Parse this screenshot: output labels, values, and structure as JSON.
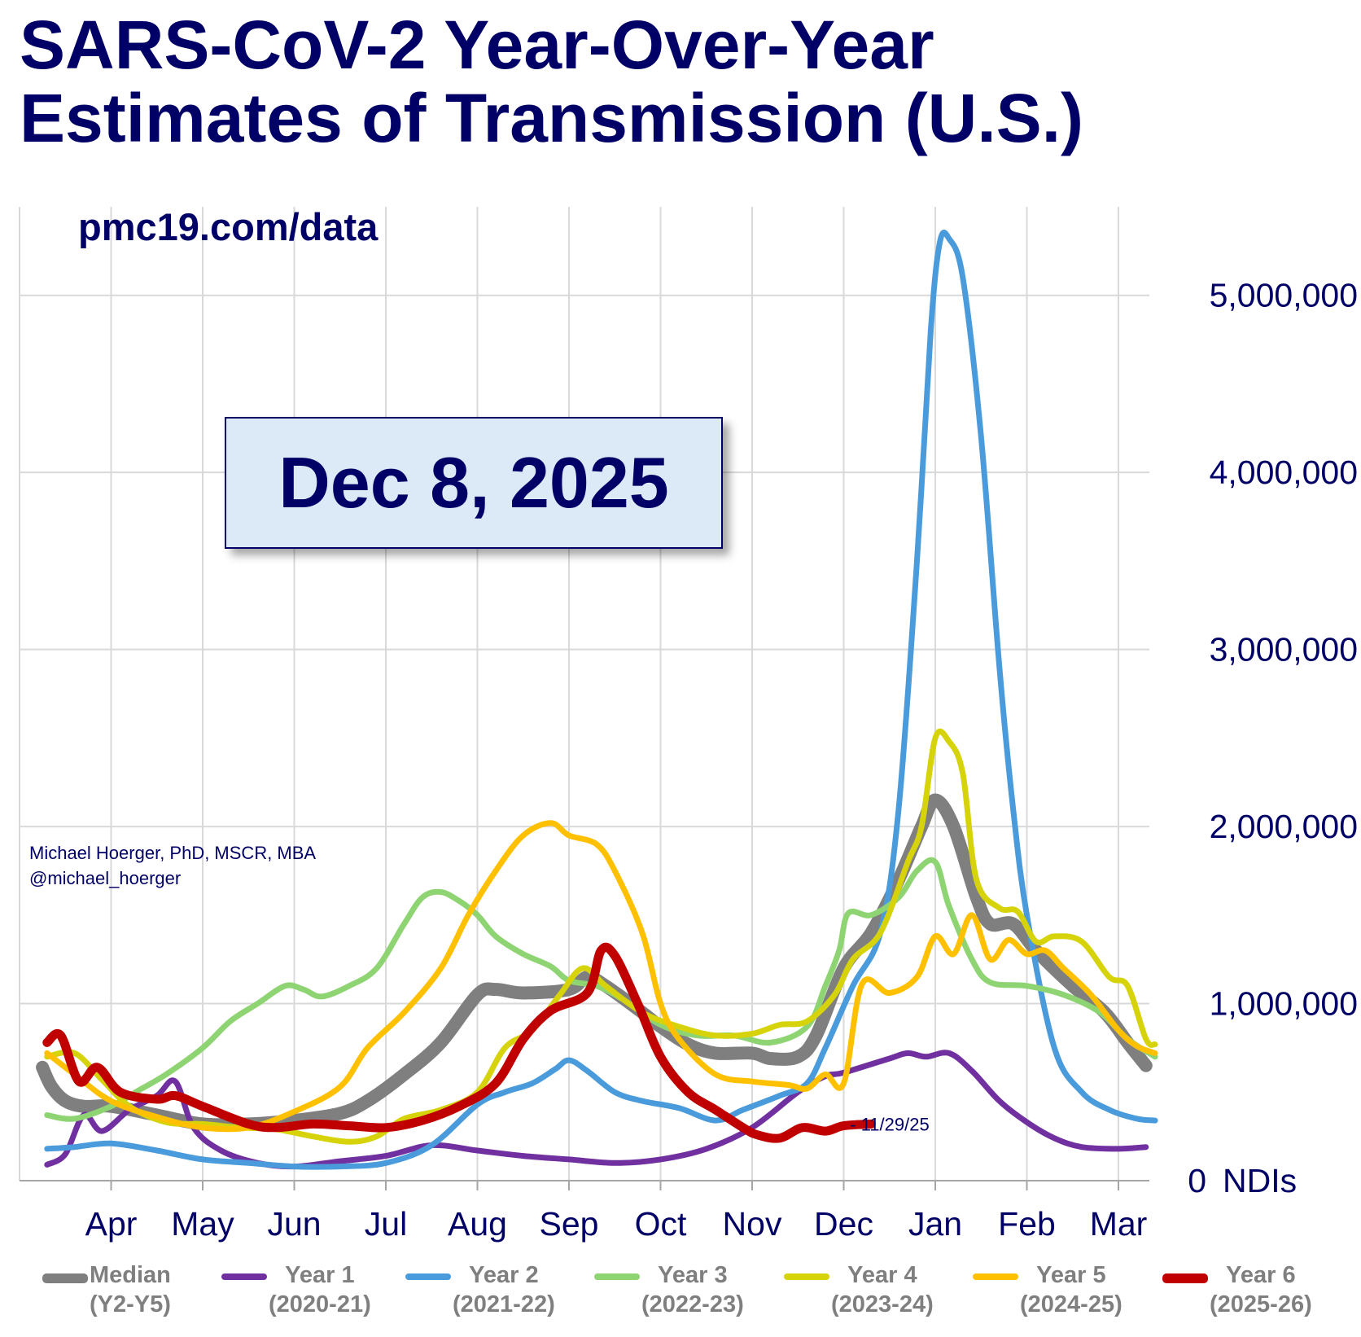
{
  "title_line1": "SARS-CoV-2 Year-Over-Year",
  "title_line2": "Estimates of Transmission (U.S.)",
  "source": "pmc19.com/data",
  "author_line1": "Michael Hoerger, PhD, MSCR, MBA",
  "author_line2": "@michael_hoerger",
  "date_label": "Dec 8, 2025",
  "chart_data": {
    "type": "line",
    "title": "SARS-CoV-2 Year-Over-Year Estimates of Transmission (U.S.)",
    "ylabel": "",
    "yunit": "NDIs",
    "ylim": [
      0,
      5500000
    ],
    "yticks": [
      0,
      1000000,
      2000000,
      3000000,
      4000000,
      5000000
    ],
    "ytick_labels": [
      "0",
      "1,000,000",
      "2,000,000",
      "3,000,000",
      "4,000,000",
      "5,000,000"
    ],
    "y_axis_side": "right",
    "x_month_labels": [
      "Apr",
      "May",
      "Jun",
      "Jul",
      "Aug",
      "Sep",
      "Oct",
      "Nov",
      "Dec",
      "Jan",
      "Feb",
      "Mar"
    ],
    "x_month_positions": [
      1,
      2,
      3,
      4,
      5,
      6,
      7,
      8,
      9,
      10,
      11,
      12
    ],
    "xlim": [
      0,
      12.5
    ],
    "grid": true,
    "legend_position": "bottom",
    "annotation": {
      "text": "- 11/29/25",
      "x": 8.98,
      "y": 320000
    },
    "series": [
      {
        "name": "Median",
        "subtitle": "(Y2-Y5)",
        "color": "#7f7f7f",
        "width": 16,
        "points": [
          [
            0.25,
            640000
          ],
          [
            0.35,
            530000
          ],
          [
            0.5,
            450000
          ],
          [
            0.7,
            420000
          ],
          [
            1.0,
            420000
          ],
          [
            1.5,
            370000
          ],
          [
            2.0,
            320000
          ],
          [
            2.5,
            320000
          ],
          [
            3.0,
            340000
          ],
          [
            3.5,
            380000
          ],
          [
            3.8,
            450000
          ],
          [
            4.2,
            600000
          ],
          [
            4.6,
            780000
          ],
          [
            5.0,
            1050000
          ],
          [
            5.2,
            1080000
          ],
          [
            5.5,
            1060000
          ],
          [
            6.0,
            1080000
          ],
          [
            6.2,
            1150000
          ],
          [
            6.4,
            1100000
          ],
          [
            6.8,
            950000
          ],
          [
            7.0,
            870000
          ],
          [
            7.3,
            770000
          ],
          [
            7.6,
            720000
          ],
          [
            8.0,
            720000
          ],
          [
            8.2,
            690000
          ],
          [
            8.5,
            700000
          ],
          [
            8.7,
            820000
          ],
          [
            9.0,
            1200000
          ],
          [
            9.3,
            1400000
          ],
          [
            9.6,
            1700000
          ],
          [
            9.85,
            2000000
          ],
          [
            10.0,
            2150000
          ],
          [
            10.2,
            2000000
          ],
          [
            10.45,
            1600000
          ],
          [
            10.6,
            1450000
          ],
          [
            10.85,
            1450000
          ],
          [
            11.1,
            1300000
          ],
          [
            11.5,
            1100000
          ],
          [
            11.85,
            950000
          ],
          [
            12.1,
            780000
          ],
          [
            12.3,
            650000
          ]
        ]
      },
      {
        "name": "Year 1",
        "subtitle": "(2020-21)",
        "color": "#7030a0",
        "width": 7,
        "points": [
          [
            0.3,
            90000
          ],
          [
            0.5,
            150000
          ],
          [
            0.7,
            370000
          ],
          [
            0.9,
            280000
          ],
          [
            1.2,
            400000
          ],
          [
            1.5,
            480000
          ],
          [
            1.7,
            560000
          ],
          [
            1.9,
            300000
          ],
          [
            2.2,
            170000
          ],
          [
            2.6,
            100000
          ],
          [
            3.0,
            80000
          ],
          [
            3.5,
            110000
          ],
          [
            4.0,
            140000
          ],
          [
            4.5,
            200000
          ],
          [
            5.0,
            170000
          ],
          [
            5.5,
            140000
          ],
          [
            6.0,
            120000
          ],
          [
            6.5,
            100000
          ],
          [
            7.0,
            120000
          ],
          [
            7.5,
            180000
          ],
          [
            8.0,
            300000
          ],
          [
            8.5,
            500000
          ],
          [
            8.8,
            590000
          ],
          [
            9.0,
            610000
          ],
          [
            9.5,
            690000
          ],
          [
            9.7,
            720000
          ],
          [
            9.9,
            700000
          ],
          [
            10.15,
            720000
          ],
          [
            10.4,
            620000
          ],
          [
            10.7,
            450000
          ],
          [
            11.0,
            330000
          ],
          [
            11.3,
            240000
          ],
          [
            11.6,
            190000
          ],
          [
            12.0,
            180000
          ],
          [
            12.3,
            190000
          ]
        ]
      },
      {
        "name": "Year 2",
        "subtitle": "(2021-22)",
        "color": "#4a9bdc",
        "width": 7,
        "points": [
          [
            0.3,
            180000
          ],
          [
            0.6,
            190000
          ],
          [
            1.0,
            210000
          ],
          [
            1.5,
            170000
          ],
          [
            2.0,
            120000
          ],
          [
            2.5,
            100000
          ],
          [
            3.0,
            80000
          ],
          [
            3.5,
            80000
          ],
          [
            4.0,
            100000
          ],
          [
            4.5,
            200000
          ],
          [
            5.0,
            430000
          ],
          [
            5.3,
            500000
          ],
          [
            5.6,
            550000
          ],
          [
            5.85,
            630000
          ],
          [
            6.0,
            680000
          ],
          [
            6.2,
            620000
          ],
          [
            6.5,
            500000
          ],
          [
            6.8,
            450000
          ],
          [
            7.2,
            410000
          ],
          [
            7.6,
            340000
          ],
          [
            7.9,
            400000
          ],
          [
            8.3,
            480000
          ],
          [
            8.6,
            550000
          ],
          [
            8.8,
            750000
          ],
          [
            9.1,
            1100000
          ],
          [
            9.4,
            1400000
          ],
          [
            9.6,
            2100000
          ],
          [
            9.8,
            3500000
          ],
          [
            9.95,
            4800000
          ],
          [
            10.05,
            5300000
          ],
          [
            10.15,
            5320000
          ],
          [
            10.3,
            5100000
          ],
          [
            10.5,
            4200000
          ],
          [
            10.7,
            2900000
          ],
          [
            10.85,
            2100000
          ],
          [
            11.0,
            1500000
          ],
          [
            11.3,
            750000
          ],
          [
            11.6,
            500000
          ],
          [
            11.9,
            400000
          ],
          [
            12.2,
            350000
          ],
          [
            12.4,
            340000
          ]
        ]
      },
      {
        "name": "Year 3",
        "subtitle": "(2022-23)",
        "color": "#8fd473",
        "width": 7,
        "points": [
          [
            0.3,
            370000
          ],
          [
            0.6,
            350000
          ],
          [
            1.0,
            420000
          ],
          [
            1.3,
            510000
          ],
          [
            1.6,
            600000
          ],
          [
            2.0,
            750000
          ],
          [
            2.3,
            900000
          ],
          [
            2.6,
            1000000
          ],
          [
            2.9,
            1100000
          ],
          [
            3.1,
            1080000
          ],
          [
            3.3,
            1040000
          ],
          [
            3.6,
            1100000
          ],
          [
            3.9,
            1200000
          ],
          [
            4.2,
            1450000
          ],
          [
            4.4,
            1600000
          ],
          [
            4.6,
            1630000
          ],
          [
            4.8,
            1580000
          ],
          [
            5.0,
            1500000
          ],
          [
            5.2,
            1380000
          ],
          [
            5.5,
            1280000
          ],
          [
            5.8,
            1210000
          ],
          [
            6.0,
            1130000
          ],
          [
            6.3,
            1100000
          ],
          [
            6.6,
            1020000
          ],
          [
            7.0,
            880000
          ],
          [
            7.4,
            820000
          ],
          [
            7.8,
            820000
          ],
          [
            8.2,
            780000
          ],
          [
            8.6,
            870000
          ],
          [
            8.8,
            1100000
          ],
          [
            8.95,
            1300000
          ],
          [
            9.05,
            1510000
          ],
          [
            9.3,
            1500000
          ],
          [
            9.6,
            1600000
          ],
          [
            9.8,
            1750000
          ],
          [
            10.0,
            1800000
          ],
          [
            10.15,
            1550000
          ],
          [
            10.4,
            1250000
          ],
          [
            10.6,
            1120000
          ],
          [
            11.0,
            1100000
          ],
          [
            11.4,
            1050000
          ],
          [
            11.8,
            950000
          ],
          [
            12.1,
            800000
          ],
          [
            12.4,
            700000
          ]
        ]
      },
      {
        "name": "Year 4",
        "subtitle": "(2023-24)",
        "color": "#d6d30b",
        "width": 7,
        "points": [
          [
            0.3,
            700000
          ],
          [
            0.6,
            720000
          ],
          [
            0.9,
            570000
          ],
          [
            1.2,
            420000
          ],
          [
            1.6,
            330000
          ],
          [
            2.0,
            320000
          ],
          [
            2.4,
            300000
          ],
          [
            2.8,
            290000
          ],
          [
            3.2,
            250000
          ],
          [
            3.6,
            220000
          ],
          [
            3.9,
            250000
          ],
          [
            4.2,
            350000
          ],
          [
            4.6,
            400000
          ],
          [
            5.0,
            500000
          ],
          [
            5.3,
            750000
          ],
          [
            5.6,
            850000
          ],
          [
            5.9,
            1050000
          ],
          [
            6.15,
            1200000
          ],
          [
            6.4,
            1100000
          ],
          [
            6.8,
            950000
          ],
          [
            7.2,
            870000
          ],
          [
            7.6,
            820000
          ],
          [
            8.0,
            830000
          ],
          [
            8.3,
            880000
          ],
          [
            8.6,
            900000
          ],
          [
            8.9,
            1050000
          ],
          [
            9.1,
            1250000
          ],
          [
            9.4,
            1400000
          ],
          [
            9.7,
            1800000
          ],
          [
            9.85,
            2000000
          ],
          [
            10.0,
            2500000
          ],
          [
            10.15,
            2480000
          ],
          [
            10.3,
            2300000
          ],
          [
            10.45,
            1700000
          ],
          [
            10.7,
            1540000
          ],
          [
            10.9,
            1520000
          ],
          [
            11.1,
            1350000
          ],
          [
            11.3,
            1380000
          ],
          [
            11.6,
            1350000
          ],
          [
            11.9,
            1150000
          ],
          [
            12.1,
            1100000
          ],
          [
            12.3,
            800000
          ],
          [
            12.4,
            770000
          ]
        ]
      },
      {
        "name": "Year 5",
        "subtitle": "(2024-25)",
        "color": "#ffc000",
        "width": 7,
        "points": [
          [
            0.3,
            720000
          ],
          [
            0.6,
            600000
          ],
          [
            1.0,
            450000
          ],
          [
            1.5,
            360000
          ],
          [
            2.0,
            300000
          ],
          [
            2.5,
            300000
          ],
          [
            3.0,
            390000
          ],
          [
            3.5,
            530000
          ],
          [
            3.8,
            750000
          ],
          [
            4.2,
            950000
          ],
          [
            4.6,
            1200000
          ],
          [
            4.9,
            1500000
          ],
          [
            5.2,
            1750000
          ],
          [
            5.5,
            1950000
          ],
          [
            5.8,
            2020000
          ],
          [
            6.0,
            1950000
          ],
          [
            6.3,
            1900000
          ],
          [
            6.5,
            1750000
          ],
          [
            6.8,
            1400000
          ],
          [
            7.0,
            1000000
          ],
          [
            7.2,
            800000
          ],
          [
            7.6,
            600000
          ],
          [
            8.0,
            560000
          ],
          [
            8.4,
            540000
          ],
          [
            8.6,
            520000
          ],
          [
            8.8,
            600000
          ],
          [
            9.0,
            550000
          ],
          [
            9.2,
            1110000
          ],
          [
            9.5,
            1060000
          ],
          [
            9.8,
            1150000
          ],
          [
            10.0,
            1380000
          ],
          [
            10.2,
            1280000
          ],
          [
            10.4,
            1500000
          ],
          [
            10.6,
            1250000
          ],
          [
            10.8,
            1360000
          ],
          [
            11.0,
            1280000
          ],
          [
            11.2,
            1300000
          ],
          [
            11.4,
            1200000
          ],
          [
            11.7,
            1050000
          ],
          [
            12.0,
            850000
          ],
          [
            12.2,
            760000
          ],
          [
            12.4,
            720000
          ]
        ]
      },
      {
        "name": "Year 6",
        "subtitle": "(2025-26)",
        "color": "#c00000",
        "width": 11,
        "points": [
          [
            0.3,
            780000
          ],
          [
            0.45,
            820000
          ],
          [
            0.65,
            560000
          ],
          [
            0.85,
            640000
          ],
          [
            1.1,
            500000
          ],
          [
            1.5,
            460000
          ],
          [
            1.7,
            480000
          ],
          [
            2.0,
            420000
          ],
          [
            2.5,
            320000
          ],
          [
            2.8,
            300000
          ],
          [
            3.2,
            320000
          ],
          [
            3.6,
            310000
          ],
          [
            4.0,
            300000
          ],
          [
            4.4,
            340000
          ],
          [
            4.8,
            420000
          ],
          [
            5.2,
            550000
          ],
          [
            5.5,
            800000
          ],
          [
            5.8,
            960000
          ],
          [
            6.2,
            1060000
          ],
          [
            6.35,
            1300000
          ],
          [
            6.5,
            1270000
          ],
          [
            6.75,
            1000000
          ],
          [
            7.0,
            700000
          ],
          [
            7.3,
            500000
          ],
          [
            7.6,
            400000
          ],
          [
            7.9,
            300000
          ],
          [
            8.05,
            260000
          ],
          [
            8.3,
            240000
          ],
          [
            8.55,
            300000
          ],
          [
            8.8,
            280000
          ],
          [
            9.0,
            310000
          ],
          [
            9.3,
            320000
          ]
        ]
      }
    ]
  }
}
